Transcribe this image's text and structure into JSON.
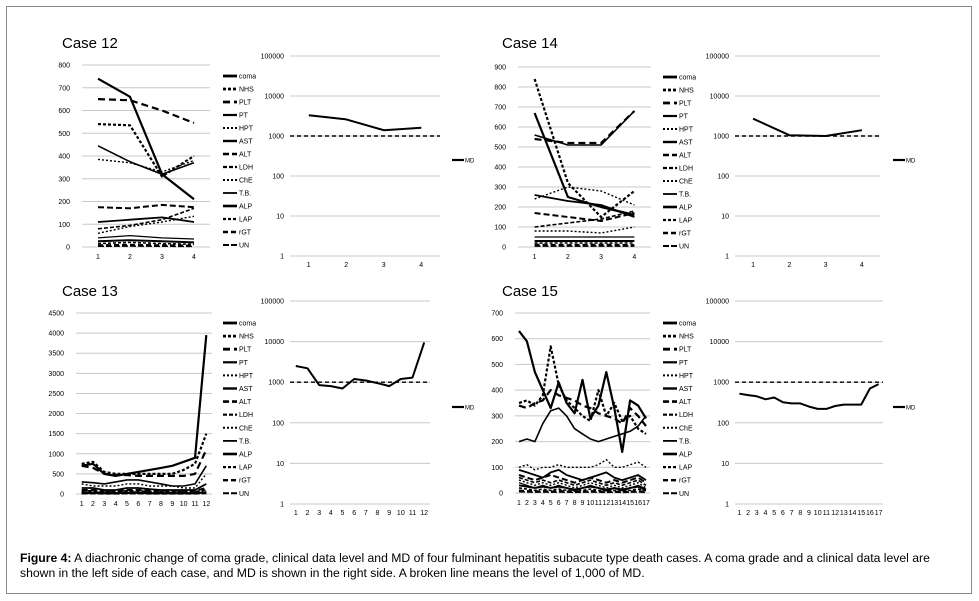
{
  "caption": {
    "label": "Figure 4:",
    "text": " A diachronic change of coma grade, clinical data level and MD of four fulminant hepatitis subacute type death cases. A coma grade and a clinical data level are shown in the left side of each case, and MD is shown in the right side. A broken line means the level of 1,000 of MD."
  },
  "legend_labels": [
    "coma",
    "NHS",
    "PLT",
    "PT",
    "HPT",
    "AST",
    "ALT",
    "LDH",
    "ChE",
    "T.B.",
    "ALP",
    "LAP",
    "rGT",
    "UN"
  ],
  "md_ticks": [
    "1",
    "10",
    "100",
    "1000",
    "10000",
    "100000"
  ],
  "chart_data": [
    {
      "type": "line",
      "title": "Case 12",
      "panel": "clinical",
      "x": [
        1,
        2,
        3,
        4
      ],
      "ylim": [
        0,
        800
      ],
      "yticks": [
        "0",
        "100",
        "200",
        "300",
        "400",
        "500",
        "600",
        "700",
        "800"
      ],
      "series": [
        {
          "name": "coma",
          "values": [
            740,
            660,
            320,
            210
          ]
        },
        {
          "name": "NHS",
          "values": [
            540,
            535,
            310,
            400
          ]
        },
        {
          "name": "PLT",
          "values": [
            650,
            645,
            600,
            545
          ]
        },
        {
          "name": "PT",
          "values": [
            445,
            375,
            320,
            370
          ]
        },
        {
          "name": "HPT",
          "values": [
            385,
            370,
            330,
            380
          ]
        },
        {
          "name": "AST",
          "values": [
            110,
            120,
            130,
            110
          ]
        },
        {
          "name": "ALT",
          "values": [
            175,
            170,
            185,
            175
          ]
        },
        {
          "name": "LDH",
          "values": [
            80,
            95,
            120,
            170
          ]
        },
        {
          "name": "ChE",
          "values": [
            60,
            90,
            110,
            135
          ]
        },
        {
          "name": "T.B.",
          "values": [
            40,
            50,
            40,
            35
          ]
        },
        {
          "name": "ALP",
          "values": [
            25,
            30,
            25,
            20
          ]
        },
        {
          "name": "LAP",
          "values": [
            15,
            20,
            15,
            12
          ]
        },
        {
          "name": "rGT",
          "values": [
            8,
            10,
            8,
            6
          ]
        },
        {
          "name": "UN",
          "values": [
            3,
            4,
            3,
            2
          ]
        }
      ]
    },
    {
      "type": "line",
      "title": "",
      "panel": "md",
      "yscale": "log",
      "x": [
        1,
        2,
        3,
        4
      ],
      "ylim": [
        1,
        100000
      ],
      "reference": 1000,
      "legend": "MD",
      "series": [
        {
          "name": "MD",
          "values": [
            3300,
            2600,
            1400,
            1600
          ]
        }
      ]
    },
    {
      "type": "line",
      "title": "Case 14",
      "panel": "clinical",
      "x": [
        1,
        2,
        3,
        4
      ],
      "ylim": [
        0,
        900
      ],
      "yticks": [
        "0",
        "100",
        "200",
        "300",
        "400",
        "500",
        "600",
        "700",
        "800",
        "900"
      ],
      "series": [
        {
          "name": "coma",
          "values": [
            670,
            250,
            200,
            160
          ]
        },
        {
          "name": "NHS",
          "values": [
            840,
            320,
            150,
            280
          ]
        },
        {
          "name": "PLT",
          "values": [
            540,
            520,
            520,
            680
          ]
        },
        {
          "name": "PT",
          "values": [
            560,
            510,
            510,
            680
          ]
        },
        {
          "name": "HPT",
          "values": [
            240,
            300,
            280,
            210
          ]
        },
        {
          "name": "AST",
          "values": [
            260,
            230,
            210,
            150
          ]
        },
        {
          "name": "ALT",
          "values": [
            170,
            150,
            130,
            170
          ]
        },
        {
          "name": "LDH",
          "values": [
            100,
            120,
            140,
            180
          ]
        },
        {
          "name": "ChE",
          "values": [
            80,
            80,
            70,
            100
          ]
        },
        {
          "name": "T.B.",
          "values": [
            50,
            50,
            50,
            50
          ]
        },
        {
          "name": "ALP",
          "values": [
            30,
            30,
            30,
            30
          ]
        },
        {
          "name": "LAP",
          "values": [
            20,
            20,
            20,
            20
          ]
        },
        {
          "name": "rGT",
          "values": [
            12,
            10,
            12,
            10
          ]
        },
        {
          "name": "UN",
          "values": [
            4,
            4,
            4,
            4
          ]
        }
      ]
    },
    {
      "type": "line",
      "title": "",
      "panel": "md",
      "yscale": "log",
      "x": [
        1,
        2,
        3,
        4
      ],
      "ylim": [
        1,
        100000
      ],
      "reference": 1000,
      "legend": "MD",
      "series": [
        {
          "name": "MD",
          "values": [
            2700,
            1050,
            1000,
            1400
          ]
        }
      ]
    },
    {
      "type": "line",
      "title": "Case 13",
      "panel": "clinical",
      "x": [
        1,
        2,
        3,
        4,
        5,
        6,
        7,
        8,
        9,
        10,
        11,
        12
      ],
      "ylim": [
        0,
        4500
      ],
      "yticks": [
        "0",
        "500",
        "1000",
        "1500",
        "2000",
        "2500",
        "3000",
        "3500",
        "4000",
        "4500"
      ],
      "series": [
        {
          "name": "coma",
          "values": [
            700,
            750,
            500,
            450,
            500,
            550,
            600,
            650,
            700,
            800,
            900,
            3950
          ]
        },
        {
          "name": "NHS",
          "values": [
            750,
            800,
            550,
            500,
            500,
            500,
            500,
            500,
            500,
            600,
            750,
            1500
          ]
        },
        {
          "name": "PLT",
          "values": [
            700,
            650,
            500,
            480,
            470,
            450,
            450,
            450,
            450,
            450,
            500,
            1100
          ]
        },
        {
          "name": "PT",
          "values": [
            300,
            280,
            250,
            300,
            350,
            350,
            300,
            250,
            200,
            200,
            250,
            700
          ]
        },
        {
          "name": "HPT",
          "values": [
            250,
            200,
            200,
            200,
            250,
            250,
            200,
            200,
            200,
            150,
            150,
            500
          ]
        },
        {
          "name": "AST",
          "values": [
            150,
            150,
            100,
            100,
            150,
            150,
            120,
            100,
            100,
            100,
            100,
            250
          ]
        },
        {
          "name": "ALT",
          "values": [
            100,
            100,
            80,
            80,
            100,
            100,
            80,
            80,
            80,
            80,
            80,
            150
          ]
        },
        {
          "name": "LDH",
          "values": [
            80,
            80,
            60,
            60,
            80,
            80,
            60,
            60,
            60,
            60,
            60,
            100
          ]
        },
        {
          "name": "ChE",
          "values": [
            50,
            50,
            40,
            40,
            50,
            50,
            40,
            40,
            40,
            40,
            40,
            60
          ]
        },
        {
          "name": "T.B.",
          "values": [
            40,
            40,
            30,
            30,
            40,
            40,
            30,
            30,
            30,
            30,
            30,
            50
          ]
        },
        {
          "name": "ALP",
          "values": [
            30,
            30,
            20,
            20,
            30,
            30,
            20,
            20,
            20,
            20,
            20,
            40
          ]
        },
        {
          "name": "LAP",
          "values": [
            20,
            20,
            15,
            15,
            20,
            20,
            15,
            15,
            15,
            15,
            15,
            30
          ]
        },
        {
          "name": "rGT",
          "values": [
            10,
            10,
            8,
            8,
            10,
            10,
            8,
            8,
            8,
            8,
            8,
            20
          ]
        },
        {
          "name": "UN",
          "values": [
            5,
            5,
            4,
            4,
            5,
            5,
            4,
            4,
            4,
            4,
            4,
            10
          ]
        }
      ]
    },
    {
      "type": "line",
      "title": "",
      "panel": "md",
      "yscale": "log",
      "x": [
        1,
        2,
        3,
        4,
        5,
        6,
        7,
        8,
        9,
        10,
        11,
        12
      ],
      "ylim": [
        1,
        100000
      ],
      "reference": 1000,
      "legend": "MD",
      "series": [
        {
          "name": "MD",
          "values": [
            2500,
            2200,
            850,
            800,
            700,
            1200,
            1100,
            950,
            800,
            1200,
            1300,
            9500
          ]
        }
      ]
    },
    {
      "type": "line",
      "title": "Case 15",
      "panel": "clinical",
      "x": [
        1,
        2,
        3,
        4,
        5,
        6,
        7,
        8,
        9,
        10,
        11,
        12,
        13,
        14,
        15,
        16,
        17
      ],
      "ylim": [
        0,
        700
      ],
      "yticks": [
        "0",
        "100",
        "200",
        "300",
        "400",
        "500",
        "600",
        "700"
      ],
      "series": [
        {
          "name": "coma",
          "values": [
            630,
            590,
            470,
            400,
            330,
            430,
            350,
            310,
            440,
            290,
            340,
            470,
            330,
            160,
            360,
            340,
            290
          ]
        },
        {
          "name": "NHS",
          "values": [
            350,
            360,
            340,
            380,
            570,
            420,
            360,
            330,
            300,
            280,
            400,
            300,
            350,
            280,
            300,
            250,
            230
          ]
        },
        {
          "name": "PLT",
          "values": [
            340,
            330,
            350,
            360,
            400,
            380,
            370,
            360,
            340,
            330,
            310,
            300,
            290,
            270,
            330,
            300,
            260
          ]
        },
        {
          "name": "PT",
          "values": [
            200,
            210,
            200,
            270,
            320,
            330,
            300,
            250,
            230,
            210,
            200,
            210,
            220,
            230,
            240,
            260,
            300
          ]
        },
        {
          "name": "HPT",
          "values": [
            100,
            110,
            90,
            100,
            100,
            110,
            100,
            100,
            100,
            100,
            110,
            130,
            100,
            100,
            110,
            120,
            100
          ]
        },
        {
          "name": "AST",
          "values": [
            90,
            80,
            70,
            60,
            80,
            90,
            70,
            60,
            50,
            60,
            70,
            80,
            60,
            50,
            60,
            70,
            50
          ]
        },
        {
          "name": "ALT",
          "values": [
            70,
            60,
            50,
            60,
            70,
            60,
            50,
            40,
            50,
            60,
            50,
            40,
            50,
            40,
            50,
            60,
            40
          ]
        },
        {
          "name": "LDH",
          "values": [
            60,
            50,
            40,
            50,
            40,
            50,
            40,
            30,
            40,
            50,
            40,
            30,
            40,
            30,
            40,
            50,
            30
          ]
        },
        {
          "name": "ChE",
          "values": [
            50,
            40,
            30,
            40,
            30,
            40,
            30,
            20,
            30,
            40,
            30,
            20,
            30,
            20,
            30,
            40,
            20
          ]
        },
        {
          "name": "T.B.",
          "values": [
            40,
            30,
            20,
            30,
            20,
            30,
            20,
            15,
            20,
            30,
            20,
            15,
            20,
            15,
            20,
            30,
            15
          ]
        },
        {
          "name": "ALP",
          "values": [
            30,
            25,
            20,
            25,
            20,
            25,
            20,
            10,
            20,
            25,
            20,
            10,
            20,
            10,
            20,
            25,
            10
          ]
        },
        {
          "name": "LAP",
          "values": [
            20,
            15,
            10,
            15,
            10,
            15,
            10,
            8,
            10,
            15,
            10,
            8,
            10,
            8,
            10,
            15,
            8
          ]
        },
        {
          "name": "rGT",
          "values": [
            10,
            8,
            6,
            8,
            6,
            8,
            6,
            5,
            6,
            8,
            6,
            5,
            6,
            5,
            6,
            8,
            5
          ]
        },
        {
          "name": "UN",
          "values": [
            5,
            4,
            3,
            4,
            3,
            4,
            3,
            2,
            3,
            4,
            3,
            2,
            3,
            2,
            3,
            4,
            2
          ]
        }
      ]
    },
    {
      "type": "line",
      "title": "",
      "panel": "md",
      "yscale": "log",
      "x": [
        1,
        2,
        3,
        4,
        5,
        6,
        7,
        8,
        9,
        10,
        11,
        12,
        13,
        14,
        15,
        16,
        17
      ],
      "ylim": [
        1,
        100000
      ],
      "reference": 1000,
      "legend": "MD",
      "series": [
        {
          "name": "MD",
          "values": [
            520,
            480,
            450,
            380,
            420,
            320,
            300,
            300,
            250,
            220,
            220,
            260,
            280,
            280,
            280,
            700,
            900
          ]
        }
      ]
    }
  ]
}
